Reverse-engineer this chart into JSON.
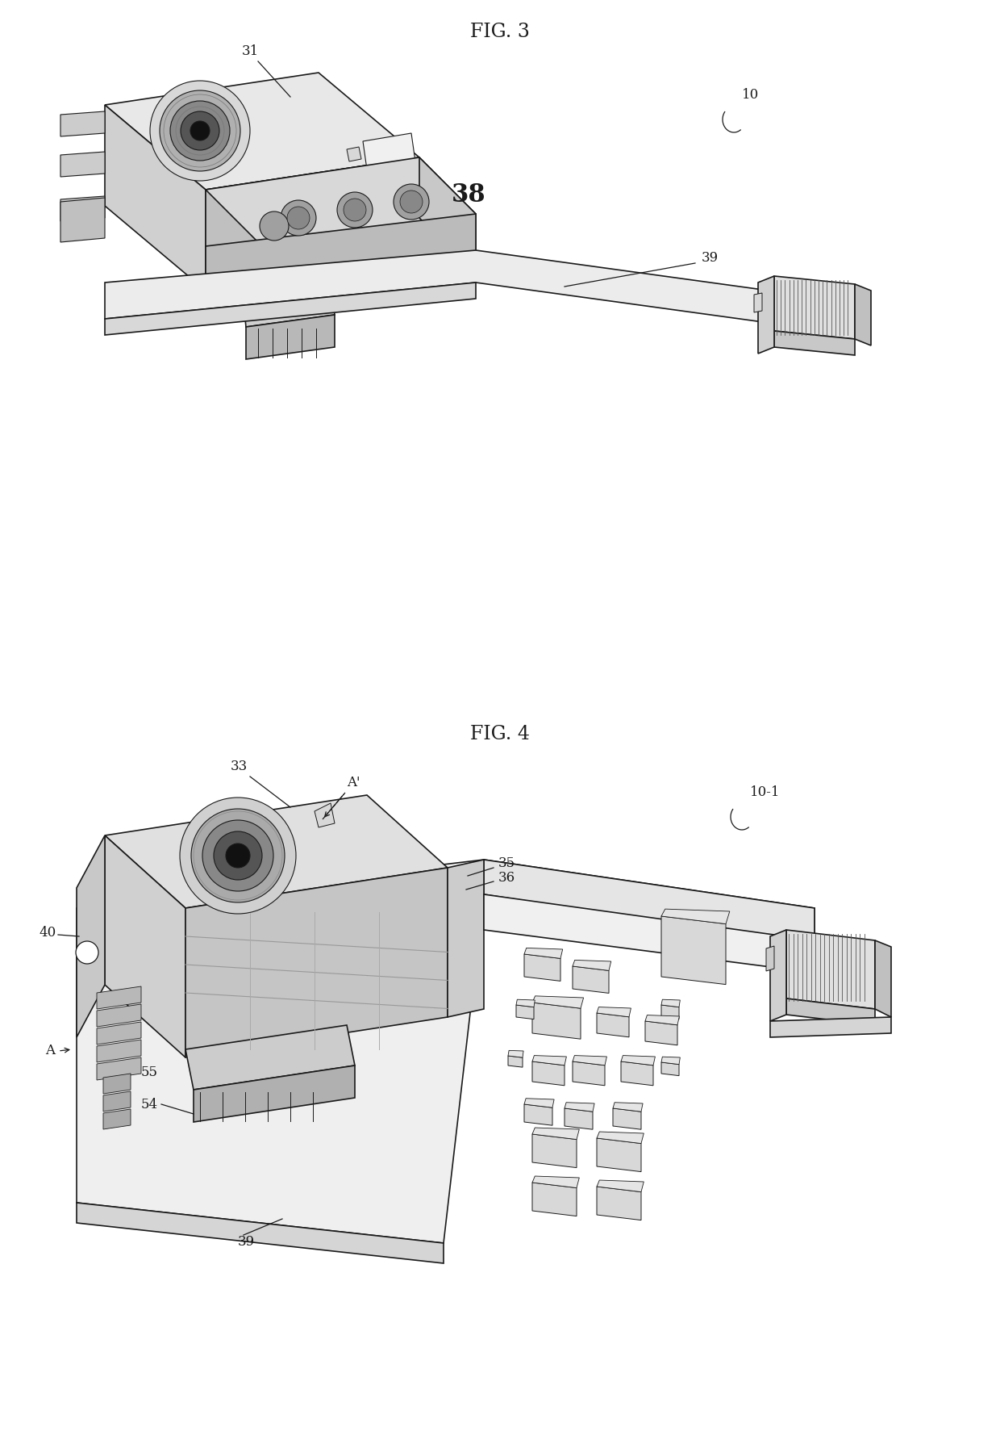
{
  "fig_width": 12.4,
  "fig_height": 17.79,
  "dpi": 100,
  "bg": "#ffffff",
  "lc": "#1a1a1a",
  "lw": 1.2,
  "fig3_title": "FIG. 3",
  "fig4_title": "FIG. 4",
  "label_fs": 12,
  "title_fs": 17
}
